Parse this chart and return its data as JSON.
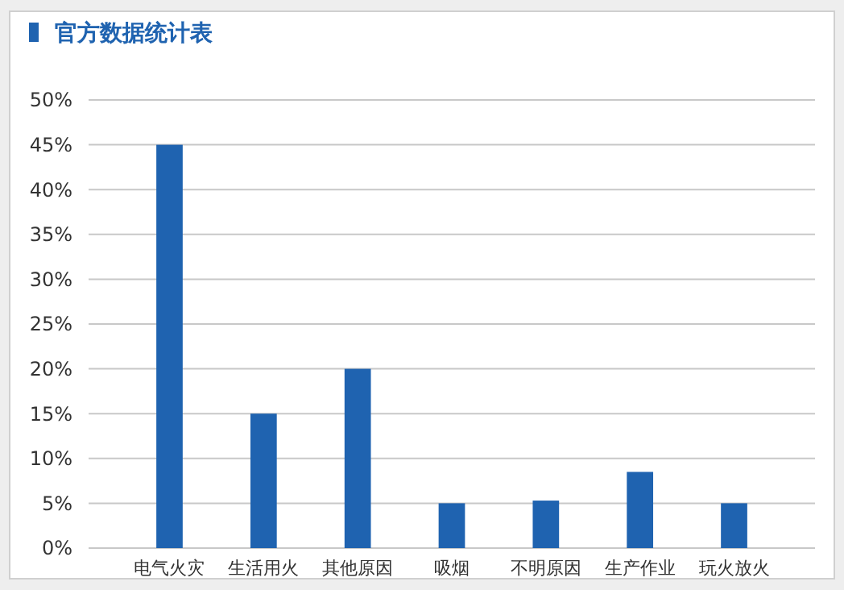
{
  "chart_data": {
    "type": "bar",
    "title": "官方数据统计表",
    "categories": [
      "电气火灾",
      "生活用火",
      "其他原因",
      "吸烟",
      "不明原因",
      "生产作业",
      "玩火放火"
    ],
    "values": [
      45,
      15,
      20,
      5,
      5.3,
      8.5,
      5
    ],
    "color": "#1f63b0",
    "ylim": [
      0,
      50
    ],
    "yticks": [
      {
        "value": 0,
        "label": "0%"
      },
      {
        "value": 5,
        "label": "5%"
      },
      {
        "value": 10,
        "label": "10%"
      },
      {
        "value": 15,
        "label": "15%"
      },
      {
        "value": 20,
        "label": "20%"
      },
      {
        "value": 25,
        "label": "25%"
      },
      {
        "value": 30,
        "label": "30%"
      },
      {
        "value": 35,
        "label": "35%"
      },
      {
        "value": 40,
        "label": "40%"
      },
      {
        "value": 45,
        "label": "45%"
      },
      {
        "value": 50,
        "label": "50%"
      }
    ],
    "grid": "y"
  }
}
